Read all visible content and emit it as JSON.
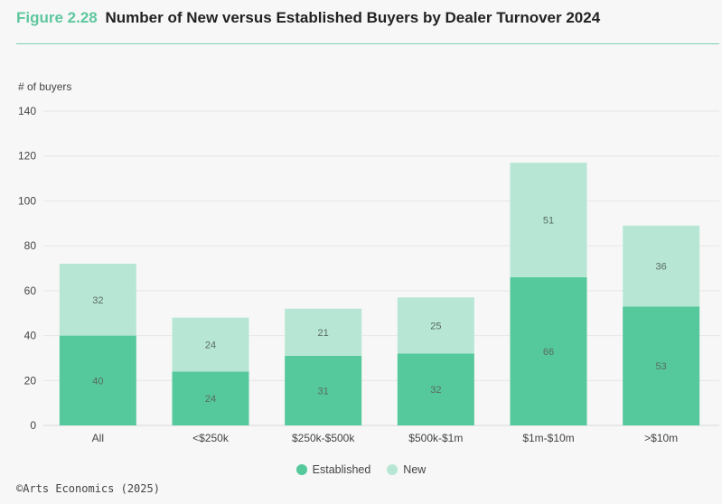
{
  "header": {
    "figure_label": "Figure 2.28",
    "title": "Number of New versus Established Buyers by Dealer Turnover 2024"
  },
  "source": "©Arts Economics (2025)",
  "colors": {
    "accent": "#5ec79e",
    "established": "#55c89c",
    "new": "#b7e7d4",
    "grid": "#e6e6e6",
    "label": "#5a6b63"
  },
  "chart_data": {
    "type": "bar",
    "stacked": true,
    "title": "Number of New versus Established Buyers by Dealer Turnover 2024",
    "xlabel": "",
    "ylabel": "# of buyers",
    "ylim": [
      0,
      140
    ],
    "yticks": [
      0,
      20,
      40,
      60,
      80,
      100,
      120,
      140
    ],
    "grid": true,
    "legend_position": "bottom-center",
    "categories": [
      "All",
      "<$250k",
      "$250k-$500k",
      "$500k-$1m",
      "$1m-$10m",
      ">$10m"
    ],
    "series": [
      {
        "name": "Established",
        "values": [
          40,
          24,
          31,
          32,
          66,
          53
        ]
      },
      {
        "name": "New",
        "values": [
          32,
          24,
          21,
          25,
          51,
          36
        ]
      }
    ]
  }
}
